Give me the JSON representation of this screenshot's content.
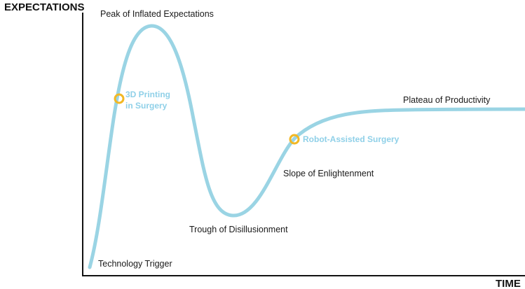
{
  "axes": {
    "y_title": "EXPECTATIONS",
    "x_title": "TIME"
  },
  "phases": {
    "technology_trigger": "Technology Trigger",
    "peak": "Peak of Inflated Expectations",
    "trough": "Trough of Disillusionment",
    "slope": "Slope of Enlightenment",
    "plateau": "Plateau of Productivity"
  },
  "markers": {
    "printing_line1": "3D Printing",
    "printing_line2": "in Surgery",
    "robot": "Robot-Assisted Surgery"
  },
  "colors": {
    "curve": "#9ad4e4",
    "marker_ring": "#f2b824",
    "marker_text": "#8fd0e8",
    "axis": "#111111"
  }
}
